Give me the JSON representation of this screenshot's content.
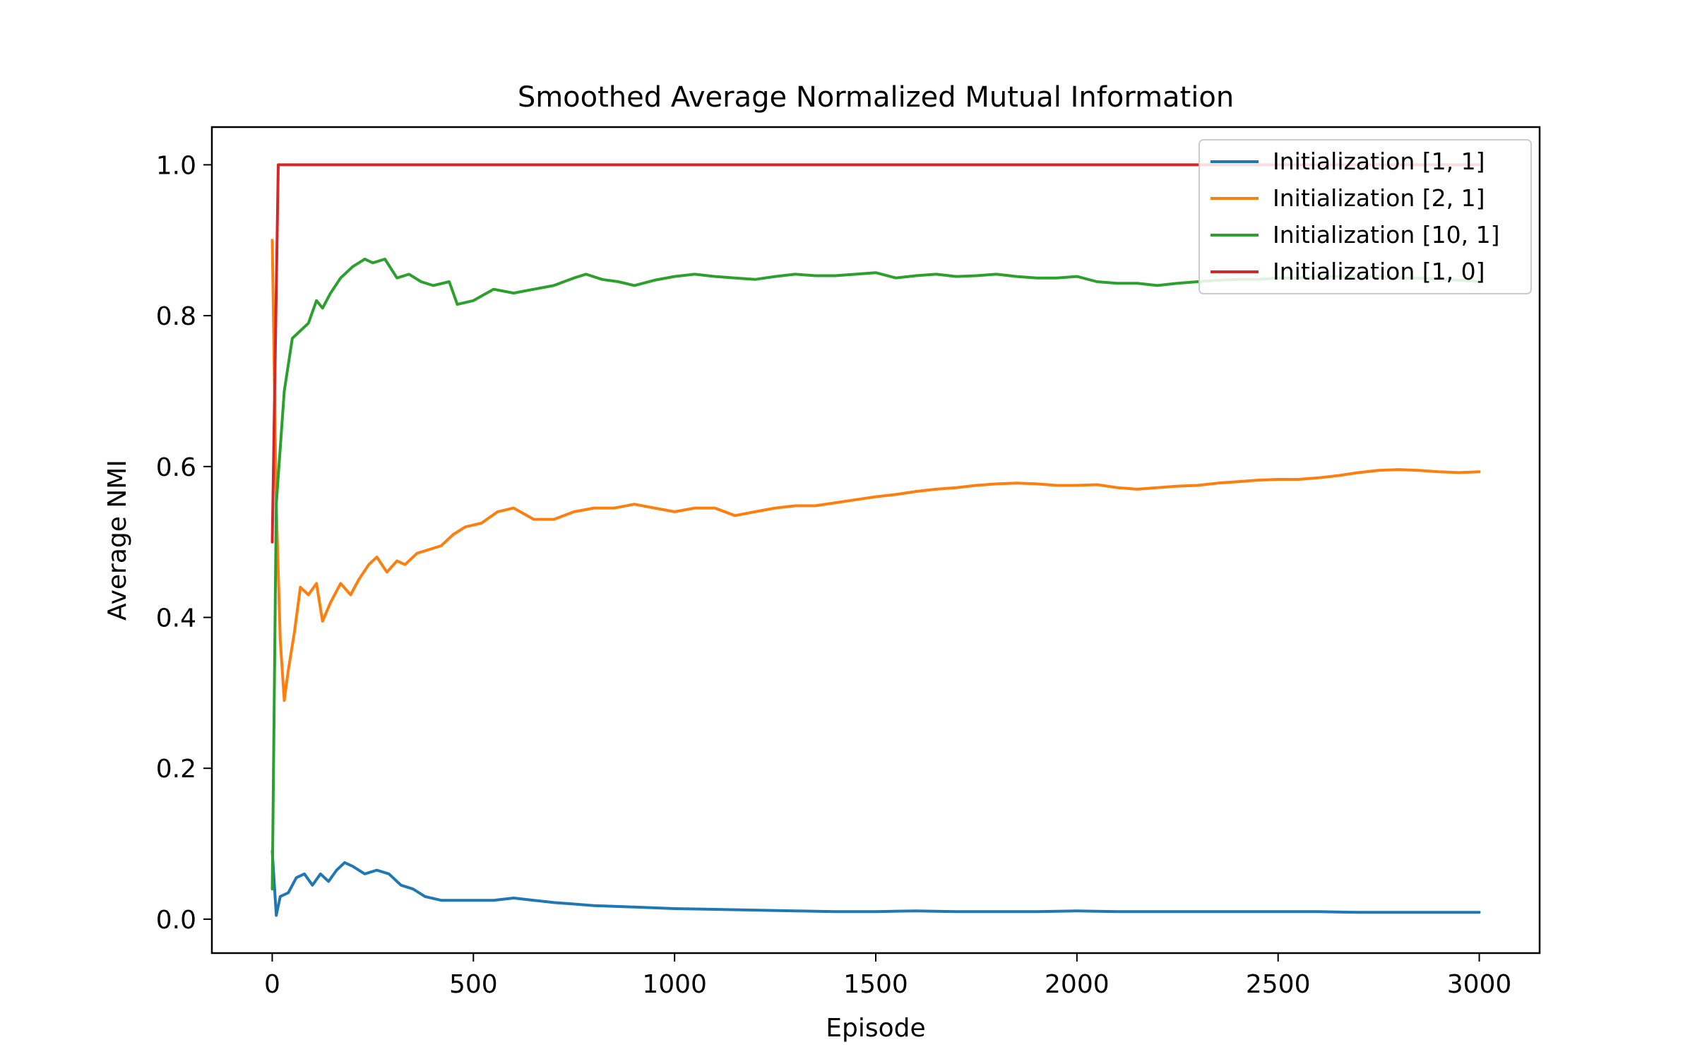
{
  "chart_data": {
    "type": "line",
    "title": "Smoothed Average Normalized Mutual Information",
    "xlabel": "Episode",
    "ylabel": "Average NMI",
    "xlim": [
      -150,
      3150
    ],
    "ylim": [
      -0.045,
      1.05
    ],
    "xticks": [
      0,
      500,
      1000,
      1500,
      2000,
      2500,
      3000
    ],
    "xtick_labels": [
      "0",
      "500",
      "1000",
      "1500",
      "2000",
      "2500",
      "3000"
    ],
    "yticks": [
      0.0,
      0.2,
      0.4,
      0.6,
      0.8,
      1.0
    ],
    "ytick_labels": [
      "0.0",
      "0.2",
      "0.4",
      "0.6",
      "0.8",
      "1.0"
    ],
    "grid": false,
    "legend_position": "top-right",
    "series": [
      {
        "name": "Initialization [1, 1]",
        "color": "#1f77b4",
        "points": [
          [
            0,
            0.09
          ],
          [
            10,
            0.005
          ],
          [
            20,
            0.03
          ],
          [
            40,
            0.035
          ],
          [
            60,
            0.055
          ],
          [
            80,
            0.06
          ],
          [
            100,
            0.045
          ],
          [
            120,
            0.06
          ],
          [
            140,
            0.05
          ],
          [
            160,
            0.065
          ],
          [
            180,
            0.075
          ],
          [
            200,
            0.07
          ],
          [
            230,
            0.06
          ],
          [
            260,
            0.065
          ],
          [
            290,
            0.06
          ],
          [
            320,
            0.045
          ],
          [
            350,
            0.04
          ],
          [
            380,
            0.03
          ],
          [
            420,
            0.025
          ],
          [
            480,
            0.025
          ],
          [
            550,
            0.025
          ],
          [
            600,
            0.028
          ],
          [
            650,
            0.025
          ],
          [
            700,
            0.022
          ],
          [
            750,
            0.02
          ],
          [
            800,
            0.018
          ],
          [
            900,
            0.016
          ],
          [
            1000,
            0.014
          ],
          [
            1100,
            0.013
          ],
          [
            1200,
            0.012
          ],
          [
            1300,
            0.011
          ],
          [
            1400,
            0.01
          ],
          [
            1500,
            0.01
          ],
          [
            1600,
            0.011
          ],
          [
            1700,
            0.01
          ],
          [
            1800,
            0.01
          ],
          [
            1900,
            0.01
          ],
          [
            2000,
            0.011
          ],
          [
            2100,
            0.01
          ],
          [
            2200,
            0.01
          ],
          [
            2300,
            0.01
          ],
          [
            2400,
            0.01
          ],
          [
            2500,
            0.01
          ],
          [
            2600,
            0.01
          ],
          [
            2700,
            0.009
          ],
          [
            2800,
            0.009
          ],
          [
            2900,
            0.009
          ],
          [
            3000,
            0.009
          ]
        ]
      },
      {
        "name": "Initialization [2, 1]",
        "color": "#ff7f0e",
        "points": [
          [
            0,
            0.9
          ],
          [
            10,
            0.55
          ],
          [
            20,
            0.37
          ],
          [
            30,
            0.29
          ],
          [
            40,
            0.33
          ],
          [
            55,
            0.38
          ],
          [
            70,
            0.44
          ],
          [
            90,
            0.43
          ],
          [
            110,
            0.445
          ],
          [
            125,
            0.395
          ],
          [
            145,
            0.42
          ],
          [
            170,
            0.445
          ],
          [
            195,
            0.43
          ],
          [
            215,
            0.45
          ],
          [
            240,
            0.47
          ],
          [
            260,
            0.48
          ],
          [
            285,
            0.46
          ],
          [
            310,
            0.475
          ],
          [
            330,
            0.47
          ],
          [
            360,
            0.485
          ],
          [
            390,
            0.49
          ],
          [
            420,
            0.495
          ],
          [
            450,
            0.51
          ],
          [
            480,
            0.52
          ],
          [
            520,
            0.525
          ],
          [
            560,
            0.54
          ],
          [
            600,
            0.545
          ],
          [
            650,
            0.53
          ],
          [
            700,
            0.53
          ],
          [
            750,
            0.54
          ],
          [
            800,
            0.545
          ],
          [
            850,
            0.545
          ],
          [
            900,
            0.55
          ],
          [
            950,
            0.545
          ],
          [
            1000,
            0.54
          ],
          [
            1050,
            0.545
          ],
          [
            1100,
            0.545
          ],
          [
            1150,
            0.535
          ],
          [
            1200,
            0.54
          ],
          [
            1250,
            0.545
          ],
          [
            1300,
            0.548
          ],
          [
            1350,
            0.548
          ],
          [
            1400,
            0.552
          ],
          [
            1450,
            0.556
          ],
          [
            1500,
            0.56
          ],
          [
            1550,
            0.563
          ],
          [
            1600,
            0.567
          ],
          [
            1650,
            0.57
          ],
          [
            1700,
            0.572
          ],
          [
            1750,
            0.575
          ],
          [
            1800,
            0.577
          ],
          [
            1850,
            0.578
          ],
          [
            1900,
            0.577
          ],
          [
            1950,
            0.575
          ],
          [
            2000,
            0.575
          ],
          [
            2050,
            0.576
          ],
          [
            2100,
            0.572
          ],
          [
            2150,
            0.57
          ],
          [
            2200,
            0.572
          ],
          [
            2250,
            0.574
          ],
          [
            2300,
            0.575
          ],
          [
            2350,
            0.578
          ],
          [
            2400,
            0.58
          ],
          [
            2450,
            0.582
          ],
          [
            2500,
            0.583
          ],
          [
            2550,
            0.583
          ],
          [
            2600,
            0.585
          ],
          [
            2650,
            0.588
          ],
          [
            2700,
            0.592
          ],
          [
            2750,
            0.595
          ],
          [
            2800,
            0.596
          ],
          [
            2850,
            0.595
          ],
          [
            2900,
            0.593
          ],
          [
            2950,
            0.592
          ],
          [
            3000,
            0.593
          ]
        ]
      },
      {
        "name": "Initialization [10, 1]",
        "color": "#2ca02c",
        "points": [
          [
            0,
            0.04
          ],
          [
            10,
            0.55
          ],
          [
            30,
            0.7
          ],
          [
            50,
            0.77
          ],
          [
            70,
            0.78
          ],
          [
            90,
            0.79
          ],
          [
            110,
            0.82
          ],
          [
            125,
            0.81
          ],
          [
            145,
            0.83
          ],
          [
            170,
            0.85
          ],
          [
            200,
            0.865
          ],
          [
            230,
            0.875
          ],
          [
            250,
            0.87
          ],
          [
            280,
            0.875
          ],
          [
            310,
            0.85
          ],
          [
            340,
            0.855
          ],
          [
            370,
            0.845
          ],
          [
            400,
            0.84
          ],
          [
            440,
            0.845
          ],
          [
            460,
            0.815
          ],
          [
            500,
            0.82
          ],
          [
            550,
            0.835
          ],
          [
            600,
            0.83
          ],
          [
            650,
            0.835
          ],
          [
            700,
            0.84
          ],
          [
            750,
            0.85
          ],
          [
            780,
            0.855
          ],
          [
            820,
            0.848
          ],
          [
            860,
            0.845
          ],
          [
            900,
            0.84
          ],
          [
            950,
            0.847
          ],
          [
            1000,
            0.852
          ],
          [
            1050,
            0.855
          ],
          [
            1100,
            0.852
          ],
          [
            1150,
            0.85
          ],
          [
            1200,
            0.848
          ],
          [
            1250,
            0.852
          ],
          [
            1300,
            0.855
          ],
          [
            1350,
            0.853
          ],
          [
            1400,
            0.853
          ],
          [
            1450,
            0.855
          ],
          [
            1500,
            0.857
          ],
          [
            1550,
            0.85
          ],
          [
            1600,
            0.853
          ],
          [
            1650,
            0.855
          ],
          [
            1700,
            0.852
          ],
          [
            1750,
            0.853
          ],
          [
            1800,
            0.855
          ],
          [
            1850,
            0.852
          ],
          [
            1900,
            0.85
          ],
          [
            1950,
            0.85
          ],
          [
            2000,
            0.852
          ],
          [
            2050,
            0.845
          ],
          [
            2100,
            0.843
          ],
          [
            2150,
            0.843
          ],
          [
            2200,
            0.84
          ],
          [
            2250,
            0.843
          ],
          [
            2300,
            0.845
          ],
          [
            2350,
            0.847
          ],
          [
            2400,
            0.848
          ],
          [
            2450,
            0.848
          ],
          [
            2500,
            0.85
          ],
          [
            2550,
            0.85
          ],
          [
            2600,
            0.852
          ],
          [
            2650,
            0.852
          ],
          [
            2700,
            0.852
          ],
          [
            2750,
            0.852
          ],
          [
            2800,
            0.85
          ],
          [
            2850,
            0.85
          ],
          [
            2900,
            0.848
          ],
          [
            2950,
            0.847
          ],
          [
            3000,
            0.845
          ]
        ]
      },
      {
        "name": "Initialization [1, 0]",
        "color": "#d62728",
        "points": [
          [
            0,
            0.5
          ],
          [
            15,
            1.0
          ],
          [
            3000,
            1.0
          ]
        ]
      }
    ]
  }
}
